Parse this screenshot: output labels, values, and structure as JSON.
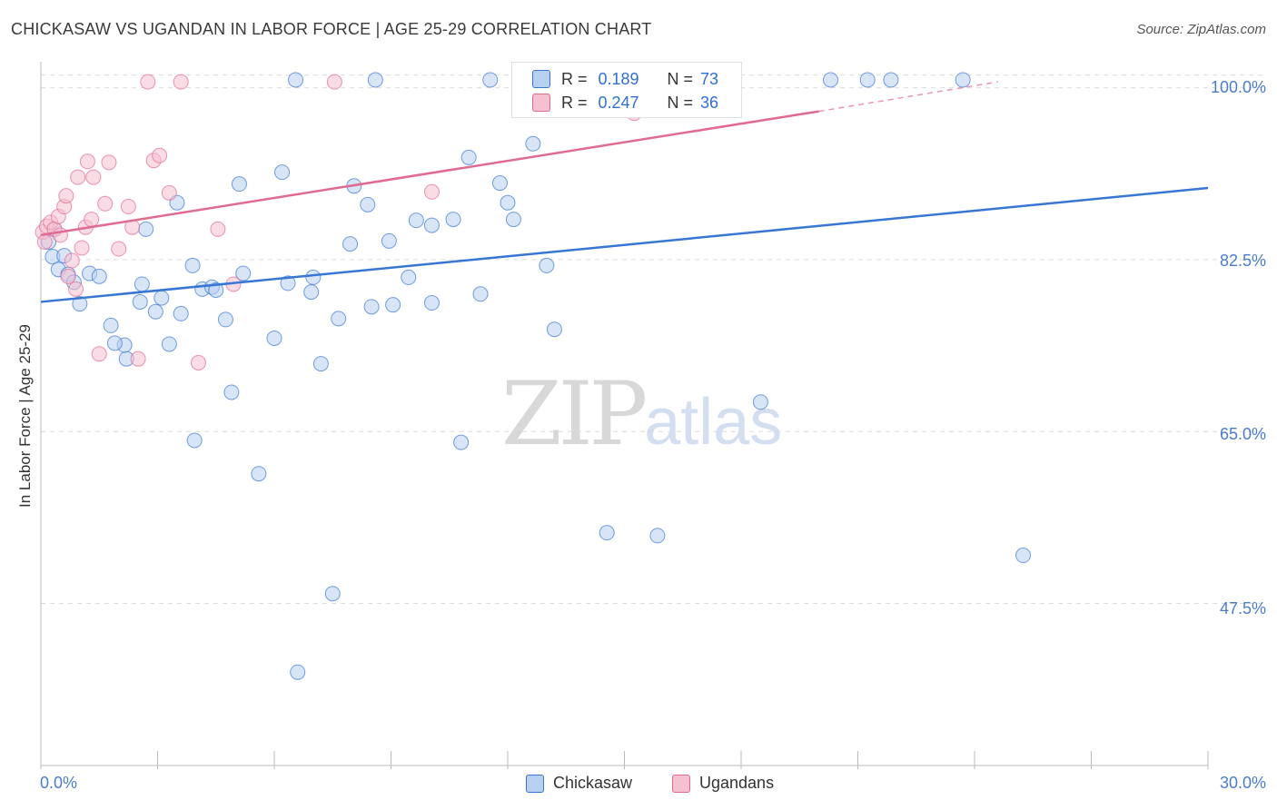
{
  "title": "CHICKASAW VS UGANDAN IN LABOR FORCE | AGE 25-29 CORRELATION CHART",
  "source": "Source: ZipAtlas.com",
  "watermark": {
    "zip": "ZIP",
    "atlas": "atlas"
  },
  "legend": {
    "rows": [
      {
        "r_label": "R =",
        "r_value": "0.189",
        "n_label": "N =",
        "n_value": "73"
      },
      {
        "r_label": "R =",
        "r_value": "0.247",
        "n_label": "N =",
        "n_value": "36"
      }
    ]
  },
  "bottom_legend": {
    "series1": "Chickasaw",
    "series2": "Ugandans"
  },
  "chart_data": {
    "type": "scatter",
    "title": "CHICKASAW VS UGANDAN IN LABOR FORCE | AGE 25-29 CORRELATION CHART",
    "xlabel": "",
    "ylabel": "In Labor Force | Age 25-29",
    "xlim": [
      0,
      30
    ],
    "ylim": [
      31,
      102
    ],
    "x_tick_labels": [
      "0.0%",
      "30.0%"
    ],
    "y_ticks": [
      47.5,
      65.0,
      82.5,
      100.0
    ],
    "y_tick_labels": [
      "47.5%",
      "65.0%",
      "82.5%",
      "100.0%"
    ],
    "grid": true,
    "colors": {
      "chickasaw_fill": "#b8d0f0",
      "chickasaw_line": "#3876d3",
      "ugandan_fill": "#f5c0d0",
      "ugandan_line": "#e06a92"
    },
    "series": [
      {
        "name": "Chickasaw",
        "r": 0.189,
        "n": 73,
        "trend": {
          "x": [
            0,
            30
          ],
          "y": [
            78.2,
            89.8
          ]
        },
        "points": [
          [
            0.2,
            84.3
          ],
          [
            0.3,
            82.8
          ],
          [
            0.45,
            81.5
          ],
          [
            0.6,
            82.9
          ],
          [
            0.7,
            81.0
          ],
          [
            0.85,
            80.2
          ],
          [
            1.0,
            78.0
          ],
          [
            1.25,
            81.1
          ],
          [
            1.5,
            80.8
          ],
          [
            1.8,
            75.8
          ],
          [
            2.2,
            72.4
          ],
          [
            2.15,
            73.8
          ],
          [
            2.55,
            78.2
          ],
          [
            2.7,
            85.6
          ],
          [
            2.95,
            77.2
          ],
          [
            3.1,
            78.6
          ],
          [
            3.3,
            73.9
          ],
          [
            3.5,
            88.3
          ],
          [
            3.6,
            77.0
          ],
          [
            3.9,
            81.9
          ],
          [
            3.95,
            64.1
          ],
          [
            4.15,
            79.5
          ],
          [
            4.4,
            79.7
          ],
          [
            4.5,
            79.4
          ],
          [
            4.75,
            76.4
          ],
          [
            4.9,
            69.0
          ],
          [
            5.1,
            90.2
          ],
          [
            5.2,
            81.1
          ],
          [
            5.6,
            60.7
          ],
          [
            6.0,
            74.5
          ],
          [
            6.2,
            91.4
          ],
          [
            6.35,
            80.1
          ],
          [
            6.6,
            40.5
          ],
          [
            6.55,
            100.8
          ],
          [
            6.95,
            79.2
          ],
          [
            7.0,
            80.7
          ],
          [
            7.2,
            71.9
          ],
          [
            7.5,
            48.5
          ],
          [
            7.65,
            76.5
          ],
          [
            7.95,
            84.1
          ],
          [
            8.05,
            90.0
          ],
          [
            8.4,
            88.1
          ],
          [
            8.5,
            77.7
          ],
          [
            8.6,
            100.8
          ],
          [
            8.95,
            84.4
          ],
          [
            9.05,
            77.9
          ],
          [
            9.45,
            80.7
          ],
          [
            9.65,
            86.5
          ],
          [
            10.05,
            78.1
          ],
          [
            10.05,
            86.0
          ],
          [
            10.6,
            86.6
          ],
          [
            10.8,
            63.9
          ],
          [
            11.0,
            92.9
          ],
          [
            11.3,
            79.0
          ],
          [
            11.55,
            100.8
          ],
          [
            11.8,
            90.3
          ],
          [
            12.0,
            88.3
          ],
          [
            12.15,
            86.6
          ],
          [
            12.65,
            94.3
          ],
          [
            13.0,
            81.9
          ],
          [
            13.2,
            75.4
          ],
          [
            14.55,
            54.7
          ],
          [
            15.85,
            54.4
          ],
          [
            16.7,
            100.8
          ],
          [
            18.5,
            68.0
          ],
          [
            20.3,
            100.8
          ],
          [
            21.25,
            100.8
          ],
          [
            21.85,
            100.8
          ],
          [
            23.7,
            100.8
          ],
          [
            25.25,
            52.4
          ],
          [
            0.35,
            85.6
          ],
          [
            1.9,
            74.0
          ],
          [
            2.6,
            80.0
          ]
        ]
      },
      {
        "name": "Ugandans",
        "r": 0.247,
        "n": 36,
        "trend": {
          "x": [
            0,
            20
          ],
          "y": [
            85.0,
            97.6
          ]
        },
        "trend_dashed_to": {
          "x": 24.6,
          "y": 100.6
        },
        "points": [
          [
            0.05,
            85.3
          ],
          [
            0.1,
            84.3
          ],
          [
            0.15,
            85.9
          ],
          [
            0.25,
            86.3
          ],
          [
            0.35,
            85.6
          ],
          [
            0.45,
            86.9
          ],
          [
            0.5,
            85.0
          ],
          [
            0.6,
            87.9
          ],
          [
            0.65,
            89.0
          ],
          [
            0.7,
            80.8
          ],
          [
            0.8,
            82.4
          ],
          [
            0.9,
            79.5
          ],
          [
            0.95,
            90.9
          ],
          [
            1.05,
            83.7
          ],
          [
            1.15,
            85.8
          ],
          [
            1.2,
            92.5
          ],
          [
            1.3,
            86.6
          ],
          [
            1.35,
            90.9
          ],
          [
            1.5,
            72.9
          ],
          [
            1.65,
            88.2
          ],
          [
            1.75,
            92.4
          ],
          [
            2.0,
            83.6
          ],
          [
            2.25,
            87.9
          ],
          [
            2.35,
            85.8
          ],
          [
            2.5,
            72.4
          ],
          [
            2.75,
            100.6
          ],
          [
            2.9,
            92.6
          ],
          [
            3.05,
            93.1
          ],
          [
            3.3,
            89.3
          ],
          [
            3.6,
            100.6
          ],
          [
            4.05,
            72.0
          ],
          [
            4.55,
            85.6
          ],
          [
            4.95,
            80.0
          ],
          [
            7.55,
            100.6
          ],
          [
            10.05,
            89.4
          ],
          [
            15.25,
            97.4
          ]
        ]
      }
    ]
  }
}
